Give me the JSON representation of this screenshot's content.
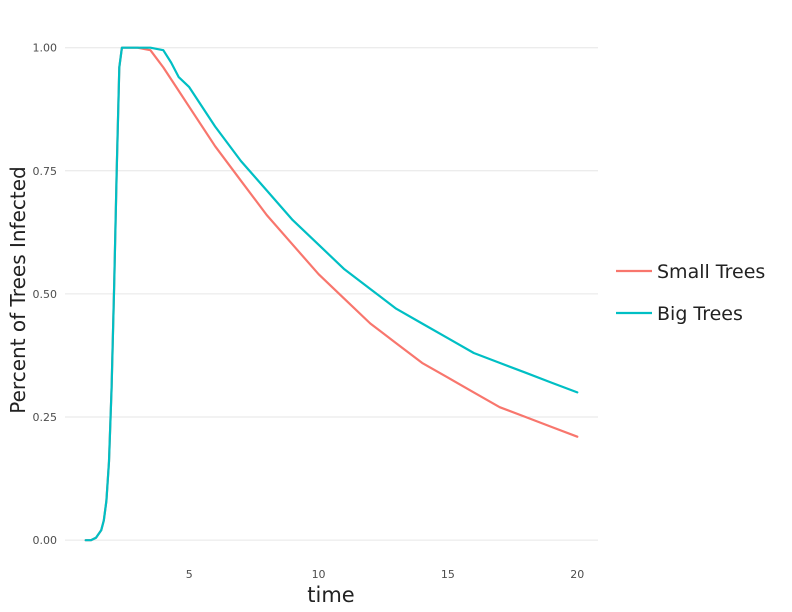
{
  "chart_data": {
    "type": "line",
    "title": "",
    "xlabel": "time",
    "ylabel": "Percent of Trees Infected",
    "xlim": [
      0.2,
      20.8
    ],
    "ylim": [
      -0.02,
      1.04
    ],
    "x_ticks": [
      5,
      10,
      15,
      20
    ],
    "x_tick_labels": [
      "5",
      "10",
      "15",
      "20"
    ],
    "y_ticks": [
      0,
      0.25,
      0.5,
      0.75,
      1.0
    ],
    "y_tick_labels": [
      "0.00",
      "0.25",
      "0.50",
      "0.75",
      "1.00"
    ],
    "grid": true,
    "legend_position": "right",
    "series": [
      {
        "name": "Small Trees",
        "color": "#F8766D",
        "x": [
          1,
          1.2,
          1.4,
          1.6,
          1.7,
          1.8,
          1.9,
          2.0,
          2.1,
          2.2,
          2.3,
          2.4,
          2.5,
          3.0,
          3.5,
          4.0,
          4.5,
          5.0,
          6,
          7,
          8,
          9,
          10,
          11,
          12,
          13,
          14,
          15,
          16,
          17,
          18,
          19,
          20
        ],
        "y": [
          0.0,
          0.0,
          0.005,
          0.02,
          0.04,
          0.08,
          0.16,
          0.31,
          0.52,
          0.75,
          0.96,
          1.0,
          1.0,
          1.0,
          0.995,
          0.96,
          0.92,
          0.88,
          0.8,
          0.73,
          0.66,
          0.6,
          0.54,
          0.49,
          0.44,
          0.4,
          0.36,
          0.33,
          0.3,
          0.27,
          0.25,
          0.23,
          0.21
        ]
      },
      {
        "name": "Big Trees",
        "color": "#00BFC4",
        "x": [
          1,
          1.2,
          1.4,
          1.6,
          1.7,
          1.8,
          1.9,
          2.0,
          2.1,
          2.2,
          2.3,
          2.4,
          2.5,
          3.0,
          3.5,
          4.0,
          4.3,
          4.6,
          5.0,
          6,
          7,
          8,
          9,
          10,
          11,
          12,
          13,
          14,
          15,
          16,
          17,
          18,
          19,
          20
        ],
        "y": [
          0.0,
          0.0,
          0.005,
          0.02,
          0.04,
          0.08,
          0.16,
          0.31,
          0.52,
          0.75,
          0.96,
          1.0,
          1.0,
          1.0,
          1.0,
          0.995,
          0.97,
          0.94,
          0.92,
          0.84,
          0.77,
          0.71,
          0.65,
          0.6,
          0.55,
          0.51,
          0.47,
          0.44,
          0.41,
          0.38,
          0.36,
          0.34,
          0.32,
          0.3
        ]
      }
    ]
  }
}
